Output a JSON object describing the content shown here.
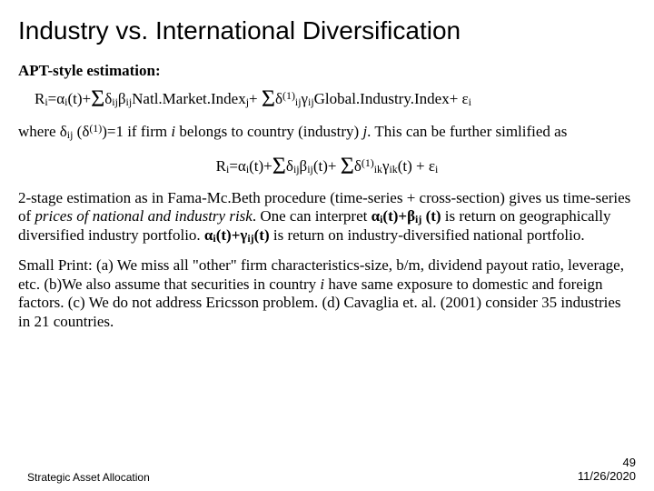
{
  "title": "Industry vs. International Diversification",
  "subhead": "APT-style estimation:",
  "eq1": {
    "lhs": "R",
    "sub_i": "i",
    "alpha": "α",
    "t": "(t)+",
    "sigma": "Σ",
    "delta": "δ",
    "ij": "ij",
    "beta": "β",
    "mkt": "Natl.Market.Index",
    "j": "j",
    "plus": "+ ",
    "one": "(1)",
    "gamma": "γ",
    "glob": "Global.Industry.Index+ ",
    "eps": "ε"
  },
  "para1_a": "where δ",
  "para1_b": " (δ",
  "para1_c": ")=1 if firm ",
  "para1_d": " belongs to country (industry) ",
  "para1_e": ". This can be further simlified as",
  "eq2": {
    "lhs": "R",
    "alpha": "α",
    "t": "(t)+",
    "sigma": "Σ",
    "delta": "δ",
    "beta": "β",
    "tplus": "(t)+ ",
    "one": "(1)",
    "gamma": "γ",
    "ik": "ik",
    "eps": "(t) + ε"
  },
  "para2_a": "2-stage estimation as in Fama-Mc.Beth procedure (time-series + cross-section) gives us time-series of ",
  "para2_b": "prices of national and industry risk",
  "para2_c": ". One can interpret ",
  "para2_d": " is return on geographically diversified industry portfolio. ",
  "para2_e": " is return on industry-diversified national portfolio.",
  "bold1_a": "α",
  "bold1_b": "(t)+β",
  "bold1_c": "(t)",
  "bold2_a": "α",
  "bold2_b": "(t)+γ",
  "bold2_c": "(t)",
  "para3": "Small Print: (a) We miss all \"other\" firm characteristics-size, b/m, dividend payout ratio, leverage, etc. (b)We also assume that securities in country ",
  "para3_b": " have same exposure to domestic and foreign factors. (c) We do not address Ericsson problem.  (d) Cavaglia et. al. (2001) consider 35 industries in 21 countries.",
  "footer_left": "Strategic Asset Allocation",
  "footer_page": "49",
  "footer_date": "11/26/2020",
  "i_ital": "i",
  "j_ital": "j",
  "ij_sub": "ij",
  "one_sup": "(1)"
}
